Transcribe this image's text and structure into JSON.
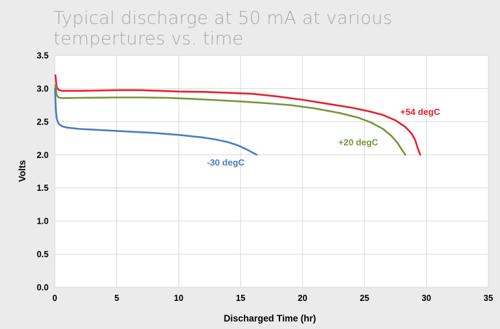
{
  "chart_data": {
    "type": "line",
    "title": "Typical discharge at 50 mA at various tempertures vs. time",
    "xlabel": "Discharged Time (hr)",
    "ylabel": "Volts",
    "xlim": [
      0,
      35
    ],
    "ylim": [
      0,
      3.5
    ],
    "xticks": [
      "0",
      "5",
      "10",
      "15",
      "20",
      "25",
      "30",
      "35"
    ],
    "yticks": [
      "0.0",
      "0.5",
      "1.0",
      "1.5",
      "2.0",
      "2.5",
      "3.0",
      "3.5"
    ],
    "grid": true,
    "series": [
      {
        "name": "+54 degC",
        "color": "#e8202a",
        "points": [
          [
            0.05,
            3.2
          ],
          [
            0.15,
            3.02
          ],
          [
            0.3,
            2.98
          ],
          [
            0.6,
            2.965
          ],
          [
            2,
            2.965
          ],
          [
            5,
            2.975
          ],
          [
            7,
            2.975
          ],
          [
            10,
            2.955
          ],
          [
            12,
            2.95
          ],
          [
            14,
            2.935
          ],
          [
            16,
            2.92
          ],
          [
            18,
            2.88
          ],
          [
            20,
            2.83
          ],
          [
            22,
            2.77
          ],
          [
            24,
            2.71
          ],
          [
            25.5,
            2.65
          ],
          [
            26.5,
            2.6
          ],
          [
            27.5,
            2.52
          ],
          [
            28.3,
            2.42
          ],
          [
            28.8,
            2.32
          ],
          [
            29.1,
            2.22
          ],
          [
            29.3,
            2.1
          ],
          [
            29.5,
            2.0
          ]
        ]
      },
      {
        "name": "+20 degC",
        "color": "#77933c",
        "points": [
          [
            0.05,
            3.05
          ],
          [
            0.15,
            2.9
          ],
          [
            0.3,
            2.865
          ],
          [
            0.6,
            2.855
          ],
          [
            2,
            2.86
          ],
          [
            5,
            2.865
          ],
          [
            7,
            2.865
          ],
          [
            9,
            2.86
          ],
          [
            11,
            2.845
          ],
          [
            13,
            2.825
          ],
          [
            15,
            2.805
          ],
          [
            17,
            2.78
          ],
          [
            19,
            2.75
          ],
          [
            21,
            2.7
          ],
          [
            23,
            2.63
          ],
          [
            24.5,
            2.56
          ],
          [
            25.5,
            2.49
          ],
          [
            26.5,
            2.39
          ],
          [
            27.2,
            2.28
          ],
          [
            27.7,
            2.17
          ],
          [
            28.0,
            2.08
          ],
          [
            28.3,
            2.0
          ]
        ]
      },
      {
        "name": "-30 degC",
        "color": "#4a7ebb",
        "points": [
          [
            0.02,
            3.0
          ],
          [
            0.08,
            2.7
          ],
          [
            0.15,
            2.55
          ],
          [
            0.3,
            2.47
          ],
          [
            0.6,
            2.43
          ],
          [
            1,
            2.41
          ],
          [
            2,
            2.39
          ],
          [
            4,
            2.37
          ],
          [
            6,
            2.35
          ],
          [
            8,
            2.33
          ],
          [
            10,
            2.3
          ],
          [
            11,
            2.28
          ],
          [
            12,
            2.26
          ],
          [
            13,
            2.23
          ],
          [
            14,
            2.19
          ],
          [
            14.8,
            2.14
          ],
          [
            15.5,
            2.08
          ],
          [
            16.0,
            2.03
          ],
          [
            16.3,
            2.0
          ]
        ]
      }
    ],
    "annotations": [
      {
        "text": "+54 degC",
        "color": "#e8202a",
        "x": 29.5,
        "y": 2.6
      },
      {
        "text": "+20 degC",
        "color": "#77933c",
        "x": 24.5,
        "y": 2.14
      },
      {
        "text": "-30 degC",
        "color": "#4a7ebb",
        "x": 13.8,
        "y": 1.84
      }
    ]
  }
}
